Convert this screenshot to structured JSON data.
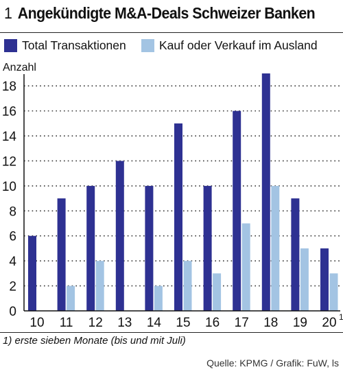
{
  "header": {
    "number": "1",
    "title": "Angekündigte M&A-Deals Schweizer Banken"
  },
  "colors": {
    "dark": "#2e3192",
    "light": "#a3c4e3"
  },
  "chart_data": {
    "type": "bar",
    "title": "Angekündigte M&A-Deals Schweizer Banken",
    "ylabel": "Anzahl",
    "xlabel": "",
    "ylim": [
      0,
      19
    ],
    "yticks": [
      0,
      2,
      4,
      6,
      8,
      10,
      12,
      14,
      16,
      18
    ],
    "grid": true,
    "legend_position": "top",
    "categories": [
      "10",
      "11",
      "12",
      "13",
      "14",
      "15",
      "16",
      "17",
      "18",
      "19",
      "20"
    ],
    "category_notes": [
      "",
      "",
      "",
      "",
      "",
      "",
      "",
      "",
      "",
      "",
      "1"
    ],
    "series": [
      {
        "name": "Total Transaktionen",
        "values": [
          6,
          9,
          10,
          12,
          10,
          15,
          10,
          16,
          19,
          9,
          5
        ]
      },
      {
        "name": "Kauf oder Verkauf im Ausland",
        "values": [
          0,
          2,
          4,
          0,
          2,
          4,
          3,
          7,
          10,
          5,
          3
        ]
      }
    ]
  },
  "footnote": "1) erste sieben Monate (bis und mit Juli)",
  "source": "Quelle: KPMG / Grafik: FuW, ls"
}
